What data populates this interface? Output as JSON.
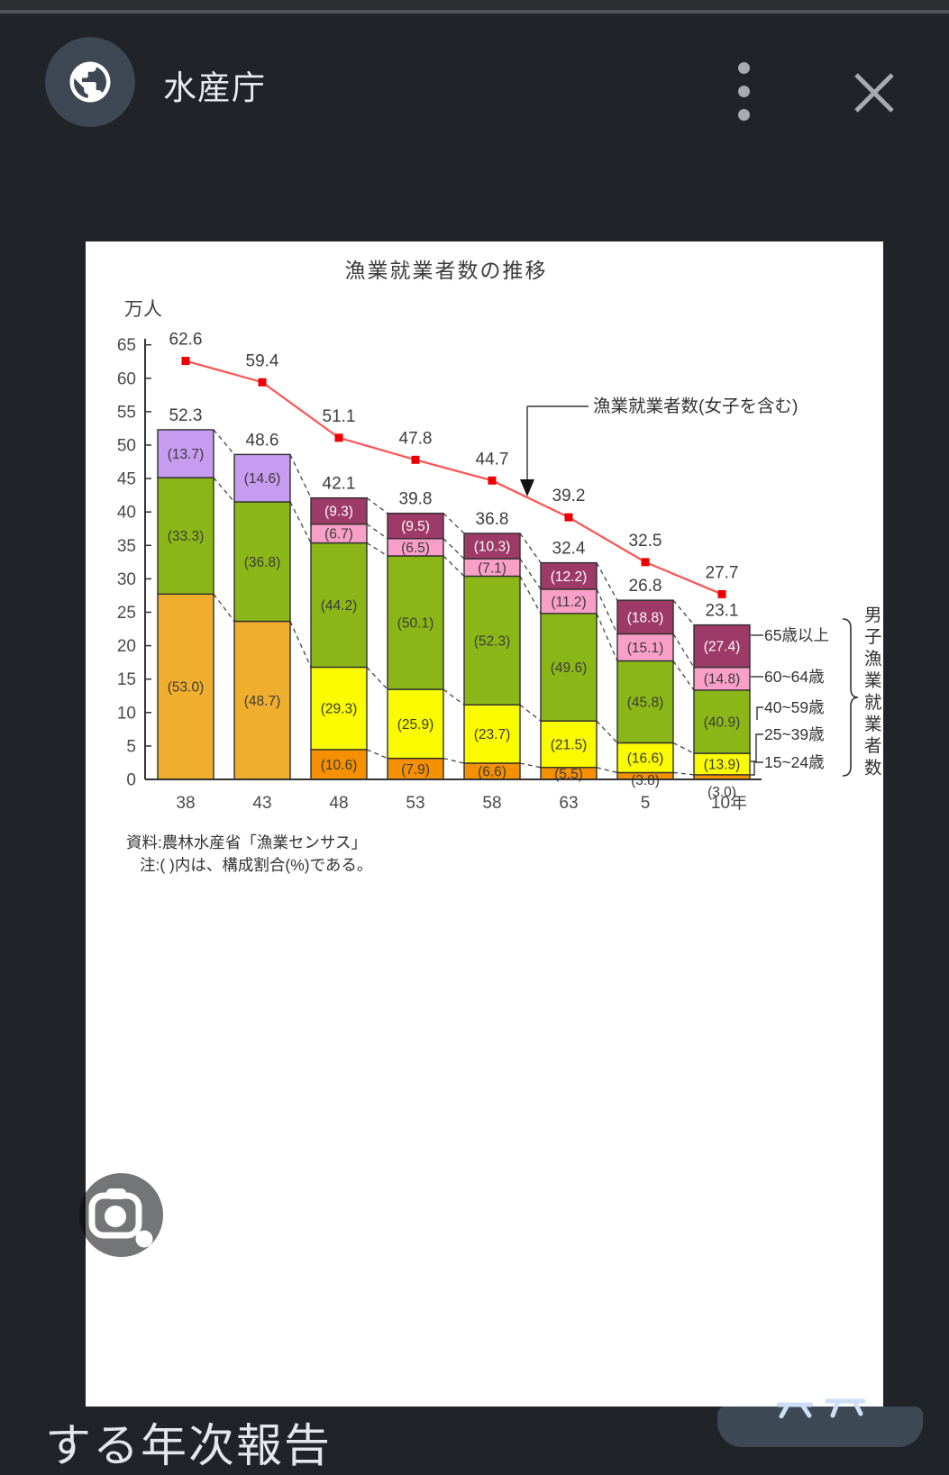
{
  "header": {
    "site_title": "水産庁"
  },
  "bottom": {
    "page_title_fragment": "する年次報告"
  },
  "chart_data": {
    "type": "bar",
    "subtype": "stacked-bars-with-line",
    "title": "漁業就業者数の推移",
    "unit_label": "万人",
    "ylim": [
      0,
      65
    ],
    "ytick_step": 5,
    "grid": false,
    "categories": [
      "38",
      "43",
      "48",
      "53",
      "58",
      "63",
      "5",
      "10年"
    ],
    "note": "注:( )内は、構成割合(%)である。",
    "source": "資料:農林水産省「漁業センサス」",
    "line_series": {
      "name": "漁業就業者数(女子を含む)",
      "values": [
        62.6,
        59.4,
        51.1,
        47.8,
        44.7,
        39.2,
        32.5,
        27.7
      ],
      "color": "#ff5252",
      "marker_color": "#ee0000"
    },
    "bars_group_label": "男子漁業就業者数",
    "age_groups": [
      "65歳以上",
      "60~64歳",
      "40~59歳",
      "25~39歳",
      "15~24歳"
    ],
    "colors": {
      "amber": "#f0ae2e",
      "green": "#8ab717",
      "purple": "#c79bef",
      "magenta": "#9e3a68",
      "pink": "#fa9fc8",
      "yellow": "#fafa00",
      "orange": "#f59100"
    },
    "bars": [
      {
        "category": "38",
        "total": 52.3,
        "segments": [
          {
            "pct": 53.0,
            "color": "amber"
          },
          {
            "pct": 33.3,
            "color": "green"
          },
          {
            "pct": 13.7,
            "color": "purple"
          }
        ]
      },
      {
        "category": "43",
        "total": 48.6,
        "segments": [
          {
            "pct": 48.7,
            "color": "amber"
          },
          {
            "pct": 36.8,
            "color": "green"
          },
          {
            "pct": 14.6,
            "color": "purple"
          }
        ]
      },
      {
        "category": "48",
        "total": 42.1,
        "segments": [
          {
            "pct": 10.6,
            "color": "orange"
          },
          {
            "pct": 29.3,
            "color": "yellow"
          },
          {
            "pct": 44.2,
            "color": "green"
          },
          {
            "pct": 6.7,
            "color": "pink"
          },
          {
            "pct": 9.3,
            "color": "magenta"
          }
        ]
      },
      {
        "category": "53",
        "total": 39.8,
        "segments": [
          {
            "pct": 7.9,
            "color": "orange"
          },
          {
            "pct": 25.9,
            "color": "yellow"
          },
          {
            "pct": 50.1,
            "color": "green"
          },
          {
            "pct": 6.5,
            "color": "pink"
          },
          {
            "pct": 9.5,
            "color": "magenta"
          }
        ]
      },
      {
        "category": "58",
        "total": 36.8,
        "segments": [
          {
            "pct": 6.6,
            "color": "orange"
          },
          {
            "pct": 23.7,
            "color": "yellow"
          },
          {
            "pct": 52.3,
            "color": "green"
          },
          {
            "pct": 7.1,
            "color": "pink"
          },
          {
            "pct": 10.3,
            "color": "magenta"
          }
        ]
      },
      {
        "category": "63",
        "total": 32.4,
        "segments": [
          {
            "pct": 5.5,
            "color": "orange"
          },
          {
            "pct": 21.5,
            "color": "yellow"
          },
          {
            "pct": 49.6,
            "color": "green"
          },
          {
            "pct": 11.2,
            "color": "pink"
          },
          {
            "pct": 12.2,
            "color": "magenta"
          }
        ]
      },
      {
        "category": "5",
        "total": 26.8,
        "segments": [
          {
            "pct": 3.8,
            "color": "orange"
          },
          {
            "pct": 16.6,
            "color": "yellow"
          },
          {
            "pct": 45.8,
            "color": "green"
          },
          {
            "pct": 15.1,
            "color": "pink"
          },
          {
            "pct": 18.8,
            "color": "magenta"
          }
        ]
      },
      {
        "category": "10年",
        "total": 23.1,
        "segments": [
          {
            "pct": 3.0,
            "color": "orange"
          },
          {
            "pct": 13.9,
            "color": "yellow"
          },
          {
            "pct": 40.9,
            "color": "green"
          },
          {
            "pct": 14.8,
            "color": "pink"
          },
          {
            "pct": 27.4,
            "color": "magenta"
          }
        ]
      }
    ]
  }
}
